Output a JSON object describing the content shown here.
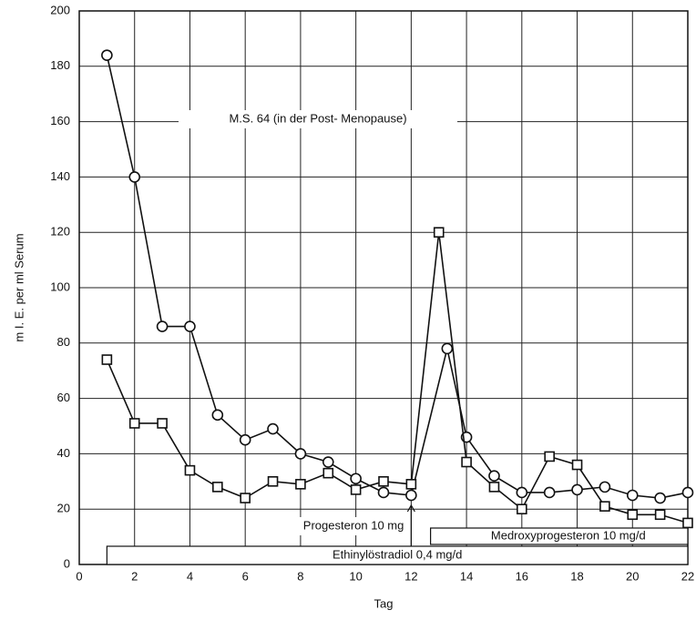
{
  "chart_data": {
    "type": "line",
    "xlabel": "Tag",
    "ylabel": "m I. E. per ml Serum",
    "xlim": [
      0,
      22
    ],
    "xticks": [
      0,
      2,
      4,
      6,
      8,
      10,
      12,
      14,
      16,
      18,
      20,
      22
    ],
    "ylim": [
      0,
      200
    ],
    "yticks": [
      0,
      20,
      40,
      60,
      80,
      100,
      120,
      140,
      160,
      180,
      200
    ],
    "grid": true,
    "annotations": [
      {
        "text": "M.S. 64 (in der Post- Menopause)"
      },
      {
        "text": "Progesteron 10 mg",
        "x": 12
      }
    ],
    "treatments": [
      {
        "label": "Medroxyprogesteron 10 mg/d",
        "start": 12.7,
        "end": 22
      },
      {
        "label": "Ethinylöstradiol 0,4 mg/d",
        "start": 1,
        "end": 22
      }
    ],
    "series": [
      {
        "marker": "circle",
        "color": "#111",
        "x": [
          1,
          2,
          3,
          4,
          5,
          6,
          7,
          8,
          9,
          10,
          11,
          12,
          13.3,
          14,
          15,
          16,
          17,
          18,
          19,
          20,
          21,
          22
        ],
        "values": [
          184,
          140,
          86,
          86,
          54,
          45,
          49,
          40,
          37,
          31,
          26,
          25,
          78,
          46,
          32,
          26,
          26,
          27,
          28,
          25,
          24,
          26
        ]
      },
      {
        "marker": "square",
        "color": "#111",
        "x": [
          1,
          2,
          3,
          4,
          5,
          6,
          7,
          8,
          9,
          10,
          11,
          12,
          13,
          14,
          15,
          16,
          17,
          18,
          19,
          20,
          21,
          22
        ],
        "values": [
          74,
          51,
          51,
          34,
          28,
          24,
          30,
          29,
          33,
          27,
          30,
          29,
          120,
          37,
          28,
          20,
          39,
          36,
          21,
          18,
          18,
          15
        ]
      }
    ]
  }
}
